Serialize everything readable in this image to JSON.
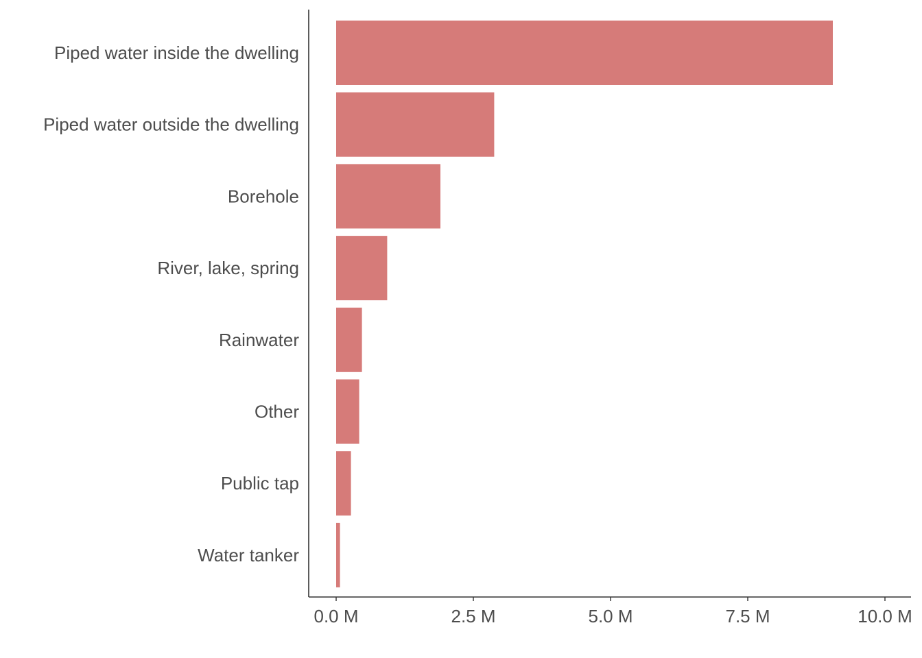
{
  "chart_data": {
    "type": "bar",
    "orientation": "horizontal",
    "categories": [
      "Piped water inside the dwelling",
      "Piped water outside the dwelling",
      "Borehole",
      "River, lake, spring",
      "Rainwater",
      "Other",
      "Public tap",
      "Water tanker"
    ],
    "values": [
      9050000,
      2880000,
      1900000,
      930000,
      470000,
      420000,
      270000,
      70000
    ],
    "xlim": [
      0,
      10000000
    ],
    "xticks": [
      0,
      2500000,
      5000000,
      7500000,
      10000000
    ],
    "xtick_labels": [
      "0.0 M",
      "2.5 M",
      "5.0 M",
      "7.5 M",
      "10.0 M"
    ],
    "title": "",
    "xlabel": "",
    "ylabel": "",
    "bar_color": "#d67b79",
    "grid": false,
    "legend": "none"
  }
}
